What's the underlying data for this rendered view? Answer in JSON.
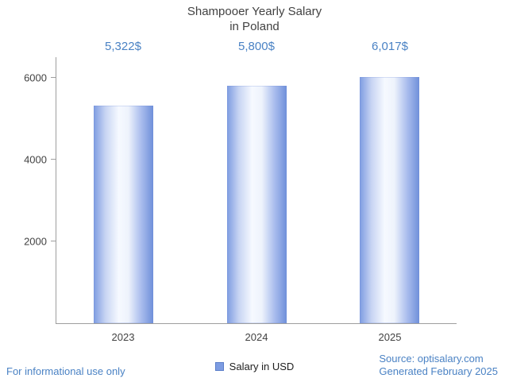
{
  "title": {
    "line1": "Shampooer Yearly Salary",
    "line2": "in Poland"
  },
  "legend": {
    "label": "Salary in USD",
    "swatch_color": "#7d9ce2"
  },
  "footer": {
    "left": "For informational use only",
    "source": "Source: optisalary.com",
    "generated": "Generated February 2025"
  },
  "colors": {
    "accent_text": "#4a82c4",
    "bar_edge": "#6f90da",
    "axis": "#9e9e9e",
    "text": "#424242"
  },
  "chart_data": {
    "type": "bar",
    "title": "Shampooer Yearly Salary in Poland",
    "categories": [
      "2023",
      "2024",
      "2025"
    ],
    "values": [
      5322,
      5800,
      6017
    ],
    "value_labels": [
      "5,322$",
      "5,800$",
      "6,017$"
    ],
    "series_name": "Salary in USD",
    "xlabel": "",
    "ylabel": "",
    "yticks": [
      2000,
      4000,
      6000
    ],
    "ylim": [
      0,
      6500
    ],
    "grid": false,
    "legend_position": "bottom"
  }
}
